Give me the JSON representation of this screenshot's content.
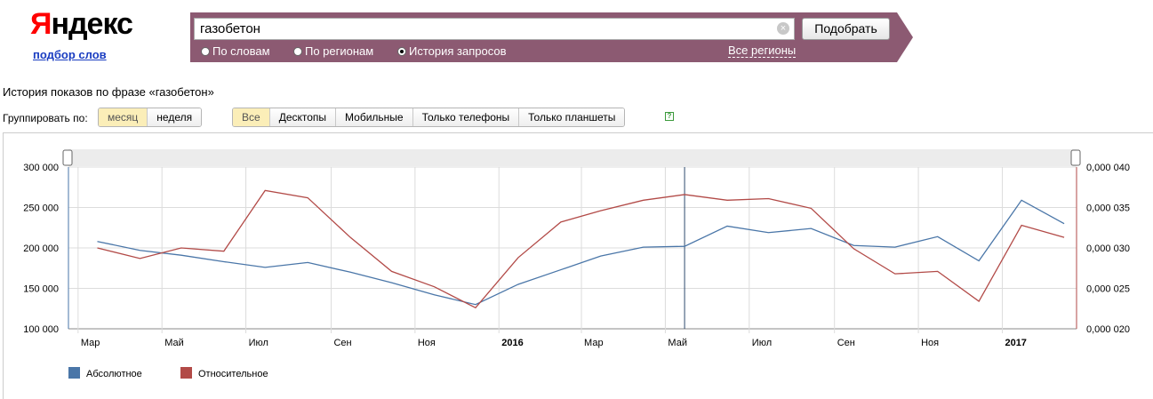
{
  "logo": {
    "first_letter": "Я",
    "rest": "ндекс"
  },
  "sub_link": "подбор слов",
  "search": {
    "value": "газобетон",
    "button": "Подобрать",
    "clear_symbol": "×"
  },
  "modes": [
    {
      "label": "По словам",
      "selected": false
    },
    {
      "label": "По регионам",
      "selected": false
    },
    {
      "label": "История запросов",
      "selected": true
    }
  ],
  "regions_link": "Все регионы",
  "history_title": "История показов по фразе «газобетон»",
  "group_label": "Группировать по:",
  "group_buttons": [
    {
      "label": "месяц",
      "selected": true
    },
    {
      "label": "неделя",
      "selected": false
    }
  ],
  "device_buttons": [
    {
      "label": "Все",
      "selected": true
    },
    {
      "label": "Десктопы",
      "selected": false
    },
    {
      "label": "Мобильные",
      "selected": false
    },
    {
      "label": "Только телефоны",
      "selected": false
    },
    {
      "label": "Только планшеты",
      "selected": false
    }
  ],
  "help_symbol": "?",
  "colors": {
    "bar": "#8c5a72",
    "abs": "#4a76a8",
    "rel": "#b24a47"
  },
  "chart_data": {
    "type": "line",
    "x": [
      "2015-03",
      "2015-04",
      "2015-05",
      "2015-06",
      "2015-07",
      "2015-08",
      "2015-09",
      "2015-10",
      "2015-11",
      "2015-12",
      "2016-01",
      "2016-02",
      "2016-03",
      "2016-04",
      "2016-05",
      "2016-06",
      "2016-07",
      "2016-08",
      "2016-09",
      "2016-10",
      "2016-11",
      "2016-12",
      "2017-01",
      "2017-02"
    ],
    "x_tick_labels": [
      {
        "x": "2015-03",
        "label": "Мар",
        "bold": false
      },
      {
        "x": "2015-05",
        "label": "Май",
        "bold": false
      },
      {
        "x": "2015-07",
        "label": "Июл",
        "bold": false
      },
      {
        "x": "2015-09",
        "label": "Сен",
        "bold": false
      },
      {
        "x": "2015-11",
        "label": "Ноя",
        "bold": false
      },
      {
        "x": "2016-01",
        "label": "2016",
        "bold": true
      },
      {
        "x": "2016-03",
        "label": "Мар",
        "bold": false
      },
      {
        "x": "2016-05",
        "label": "Май",
        "bold": false
      },
      {
        "x": "2016-07",
        "label": "Июл",
        "bold": false
      },
      {
        "x": "2016-09",
        "label": "Сен",
        "bold": false
      },
      {
        "x": "2016-11",
        "label": "Ноя",
        "bold": false
      },
      {
        "x": "2017-01",
        "label": "2017",
        "bold": true
      }
    ],
    "series": [
      {
        "name": "Абсолютное",
        "axis": "left",
        "values": [
          208000,
          197000,
          191000,
          183000,
          176000,
          182000,
          170000,
          157000,
          142000,
          130000,
          155000,
          173000,
          190000,
          201000,
          202000,
          227000,
          219000,
          224000,
          203000,
          201000,
          214000,
          184000,
          259000,
          230000
        ]
      },
      {
        "name": "Относительное",
        "axis": "right",
        "values": [
          0.03,
          0.0287,
          0.03,
          0.0296,
          0.0371,
          0.0362,
          0.0313,
          0.0271,
          0.0252,
          0.0226,
          0.0288,
          0.0332,
          0.0346,
          0.0359,
          0.0366,
          0.0359,
          0.0361,
          0.0349,
          0.0299,
          0.0268,
          0.0271,
          0.0234,
          0.0328,
          0.0313
        ]
      }
    ],
    "y_left": {
      "ylim": [
        100000,
        300000
      ],
      "ticks": [
        "100 000",
        "150 000",
        "200 000",
        "250 000",
        "300 000"
      ]
    },
    "y_right": {
      "ylim": [
        0.02,
        0.04
      ],
      "ticks": [
        "0,000 020",
        "0,000 025",
        "0,000 030",
        "0,000 035",
        "0,000 040"
      ]
    },
    "cursor_x": "2016-05-15",
    "grid": true,
    "legend_position": "bottom-left"
  }
}
